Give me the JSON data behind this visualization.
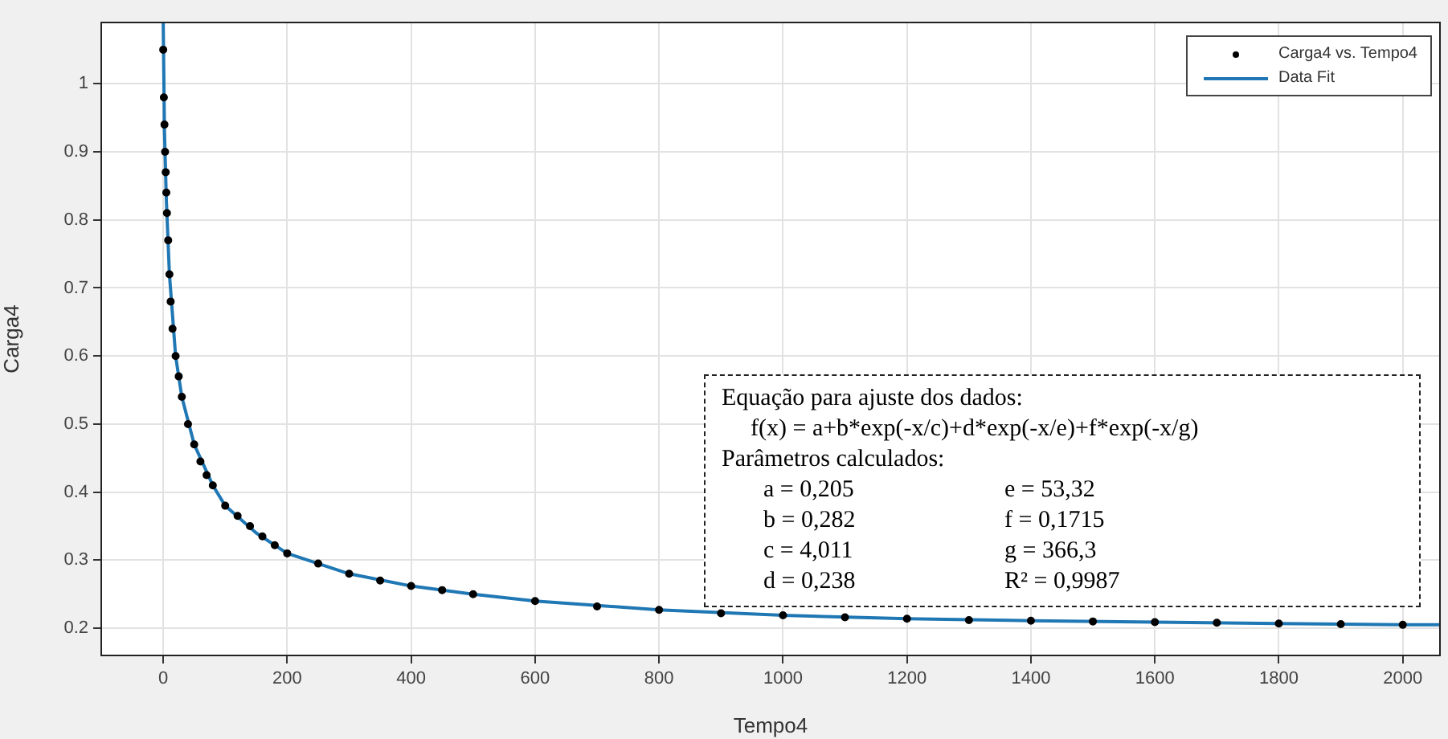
{
  "chart_data": {
    "type": "scatter",
    "xlabel": "Tempo4",
    "ylabel": "Carga4",
    "xlim": [
      -100,
      2060
    ],
    "ylim": [
      0.16,
      1.09
    ],
    "xticks": [
      0,
      200,
      400,
      600,
      800,
      1000,
      1200,
      1400,
      1600,
      1800,
      2000
    ],
    "yticks": [
      0.2,
      0.3,
      0.4,
      0.5,
      0.6,
      0.7,
      0.8,
      0.9,
      1
    ],
    "grid": true,
    "legend": "top right",
    "series": [
      {
        "name": "Carga4 vs. Tempo4",
        "marker": "circle",
        "color": "#000000",
        "x": [
          0,
          1,
          2,
          3,
          4,
          5,
          6,
          8,
          10,
          12,
          15,
          20,
          25,
          30,
          40,
          50,
          60,
          70,
          80,
          100,
          120,
          140,
          160,
          180,
          200,
          250,
          300,
          350,
          400,
          450,
          500,
          600,
          700,
          800,
          900,
          1000,
          1100,
          1200,
          1300,
          1400,
          1500,
          1600,
          1700,
          1800,
          1900,
          2000
        ],
        "values": [
          1.05,
          0.98,
          0.94,
          0.9,
          0.87,
          0.84,
          0.81,
          0.77,
          0.72,
          0.68,
          0.64,
          0.6,
          0.57,
          0.54,
          0.5,
          0.47,
          0.445,
          0.425,
          0.41,
          0.38,
          0.365,
          0.35,
          0.335,
          0.322,
          0.31,
          0.295,
          0.28,
          0.27,
          0.262,
          0.256,
          0.25,
          0.24,
          0.232,
          0.227,
          0.222,
          0.219,
          0.216,
          0.214,
          0.212,
          0.211,
          0.21,
          0.209,
          0.208,
          0.207,
          0.206,
          0.205
        ]
      },
      {
        "name": "Data Fit",
        "type": "line",
        "color": "#1f77b4",
        "x": [
          0,
          2,
          5,
          10,
          20,
          30,
          50,
          80,
          100,
          150,
          200,
          300,
          400,
          500,
          600,
          800,
          1000,
          1200,
          1400,
          1600,
          1800,
          2000,
          2060
        ],
        "values": [
          1.09,
          0.93,
          0.83,
          0.72,
          0.6,
          0.54,
          0.47,
          0.41,
          0.38,
          0.34,
          0.31,
          0.28,
          0.262,
          0.25,
          0.24,
          0.227,
          0.219,
          0.214,
          0.211,
          0.209,
          0.207,
          0.205,
          0.205
        ]
      }
    ],
    "annotations": [
      "Equação para ajuste dos dados:",
      "f(x) = a+b*exp(-x/c)+d*exp(-x/e)+f*exp(-x/g)",
      "Parâmetros calculados:",
      "a = 0,205",
      "e = 53,32",
      "b = 0,282",
      "f = 0,1715",
      "c = 4,011",
      "g = 366,3",
      "d = 0,238",
      "R² = 0,9987"
    ]
  }
}
